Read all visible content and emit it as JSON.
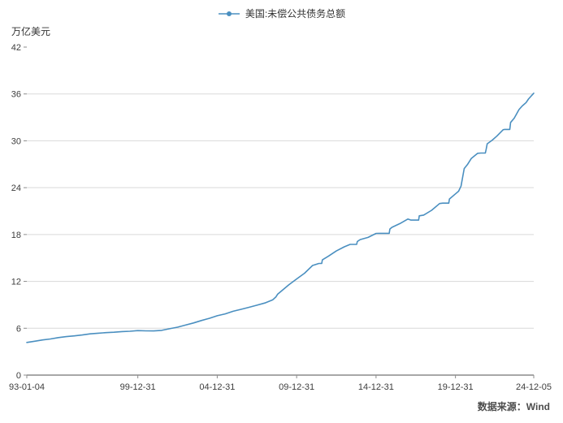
{
  "chart_data": {
    "type": "line",
    "legend": "美国:未偿公共债务总额",
    "unit_label": "万亿美元",
    "source": "数据来源：Wind",
    "ylim": [
      0,
      42
    ],
    "yticks": [
      0,
      6,
      12,
      18,
      24,
      30,
      36,
      42
    ],
    "xlim": [
      1993.01,
      2024.93
    ],
    "xticks": [
      {
        "x": 1993.01,
        "label": "93-01-04"
      },
      {
        "x": 2000.0,
        "label": "99-12-31"
      },
      {
        "x": 2005.0,
        "label": "04-12-31"
      },
      {
        "x": 2010.0,
        "label": "09-12-31"
      },
      {
        "x": 2015.0,
        "label": "14-12-31"
      },
      {
        "x": 2020.0,
        "label": "19-12-31"
      },
      {
        "x": 2024.93,
        "label": "24-12-05"
      }
    ],
    "line_color": "#4a8fc0",
    "grid_color": "#d9d9d9",
    "axis_color": "#8c8c8c",
    "text_color": "#3d3d3d",
    "grid": true,
    "legend_position": "top-center",
    "series": [
      {
        "name": "美国:未偿公共债务总额",
        "points": [
          [
            1993.01,
            4.18
          ],
          [
            1993.5,
            4.33
          ],
          [
            1994.0,
            4.5
          ],
          [
            1994.5,
            4.63
          ],
          [
            1995.0,
            4.8
          ],
          [
            1995.5,
            4.93
          ],
          [
            1996.0,
            5.02
          ],
          [
            1996.5,
            5.14
          ],
          [
            1997.0,
            5.28
          ],
          [
            1997.5,
            5.36
          ],
          [
            1998.0,
            5.44
          ],
          [
            1998.5,
            5.49
          ],
          [
            1999.0,
            5.57
          ],
          [
            1999.5,
            5.61
          ],
          [
            2000.0,
            5.7
          ],
          [
            2000.5,
            5.67
          ],
          [
            2001.0,
            5.66
          ],
          [
            2001.5,
            5.73
          ],
          [
            2002.0,
            5.94
          ],
          [
            2002.5,
            6.13
          ],
          [
            2003.0,
            6.4
          ],
          [
            2003.5,
            6.67
          ],
          [
            2004.0,
            6.99
          ],
          [
            2004.5,
            7.27
          ],
          [
            2005.0,
            7.6
          ],
          [
            2005.5,
            7.84
          ],
          [
            2006.0,
            8.17
          ],
          [
            2006.5,
            8.42
          ],
          [
            2007.0,
            8.68
          ],
          [
            2007.5,
            8.95
          ],
          [
            2008.0,
            9.23
          ],
          [
            2008.5,
            9.65
          ],
          [
            2008.7,
            10.02
          ],
          [
            2008.8,
            10.35
          ],
          [
            2009.0,
            10.7
          ],
          [
            2009.5,
            11.55
          ],
          [
            2010.0,
            12.31
          ],
          [
            2010.5,
            13.05
          ],
          [
            2011.0,
            14.03
          ],
          [
            2011.4,
            14.29
          ],
          [
            2011.58,
            14.29
          ],
          [
            2011.62,
            14.75
          ],
          [
            2012.0,
            15.22
          ],
          [
            2012.5,
            15.9
          ],
          [
            2013.0,
            16.43
          ],
          [
            2013.37,
            16.74
          ],
          [
            2013.78,
            16.74
          ],
          [
            2013.82,
            17.1
          ],
          [
            2014.0,
            17.35
          ],
          [
            2014.5,
            17.63
          ],
          [
            2015.0,
            18.14
          ],
          [
            2015.2,
            18.15
          ],
          [
            2015.83,
            18.15
          ],
          [
            2015.87,
            18.7
          ],
          [
            2016.0,
            18.92
          ],
          [
            2016.5,
            19.4
          ],
          [
            2017.0,
            19.98
          ],
          [
            2017.2,
            19.85
          ],
          [
            2017.68,
            19.85
          ],
          [
            2017.72,
            20.4
          ],
          [
            2018.0,
            20.49
          ],
          [
            2018.5,
            21.1
          ],
          [
            2019.0,
            21.97
          ],
          [
            2019.2,
            22.02
          ],
          [
            2019.58,
            22.02
          ],
          [
            2019.62,
            22.55
          ],
          [
            2020.0,
            23.2
          ],
          [
            2020.2,
            23.55
          ],
          [
            2020.35,
            24.2
          ],
          [
            2020.45,
            25.3
          ],
          [
            2020.55,
            26.45
          ],
          [
            2020.75,
            26.95
          ],
          [
            2021.0,
            27.75
          ],
          [
            2021.4,
            28.4
          ],
          [
            2021.6,
            28.43
          ],
          [
            2021.88,
            28.43
          ],
          [
            2021.93,
            28.9
          ],
          [
            2022.0,
            29.62
          ],
          [
            2022.3,
            30.05
          ],
          [
            2022.6,
            30.6
          ],
          [
            2023.0,
            31.42
          ],
          [
            2023.1,
            31.46
          ],
          [
            2023.42,
            31.46
          ],
          [
            2023.47,
            32.35
          ],
          [
            2023.7,
            32.9
          ],
          [
            2023.85,
            33.45
          ],
          [
            2024.0,
            34.0
          ],
          [
            2024.2,
            34.45
          ],
          [
            2024.45,
            34.9
          ],
          [
            2024.6,
            35.35
          ],
          [
            2024.75,
            35.7
          ],
          [
            2024.93,
            36.1
          ]
        ]
      }
    ]
  }
}
